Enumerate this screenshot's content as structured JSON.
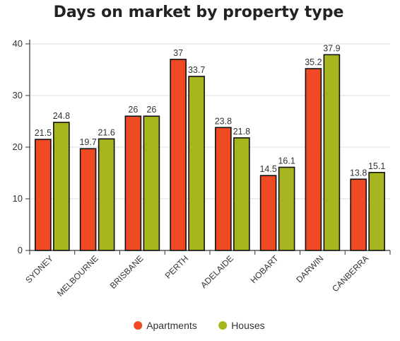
{
  "chart_data": {
    "type": "bar",
    "title": "Days on market by property type",
    "xlabel": "",
    "ylabel": "",
    "ylim": [
      0,
      40
    ],
    "yticks": [
      0,
      10,
      20,
      30,
      40
    ],
    "grid": true,
    "legend_position": "bottom",
    "categories": [
      "SYDNEY",
      "MELBOURNE",
      "BRISBANE",
      "PERTH",
      "ADELAIDE",
      "HOBART",
      "DARWIN",
      "CANBERRA"
    ],
    "series": [
      {
        "name": "Apartments",
        "color": "#f04a24",
        "values": [
          21.5,
          19.7,
          26,
          37,
          23.8,
          14.5,
          35.2,
          13.8
        ]
      },
      {
        "name": "Houses",
        "color": "#a7b51f",
        "values": [
          24.8,
          21.6,
          26,
          33.7,
          21.8,
          16.1,
          37.9,
          15.1
        ]
      }
    ]
  }
}
